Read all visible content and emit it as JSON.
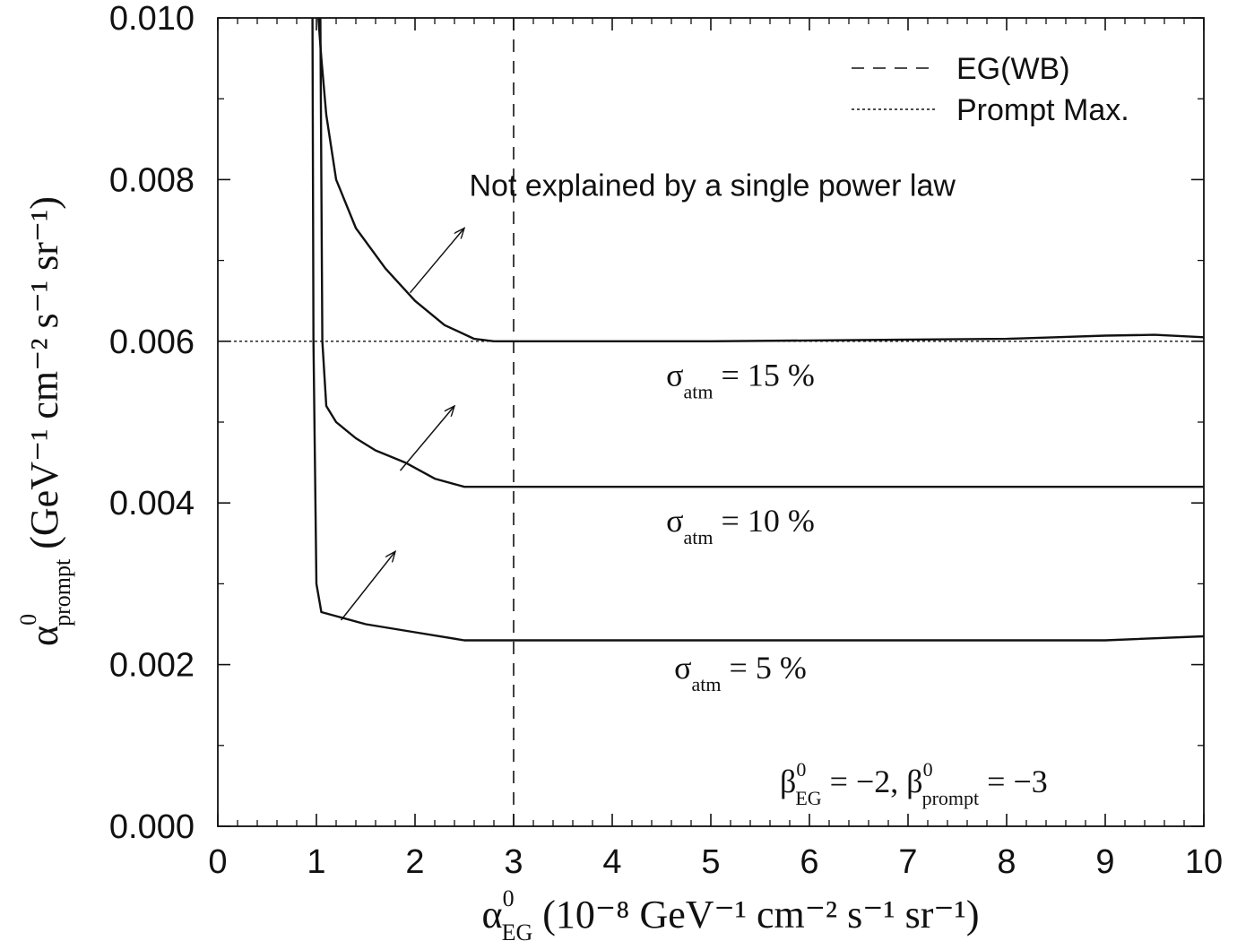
{
  "chart_data": {
    "type": "line",
    "xlim": [
      0,
      10
    ],
    "ylim": [
      0,
      0.01
    ],
    "x_ticks": [
      0,
      1,
      2,
      3,
      4,
      5,
      6,
      7,
      8,
      9,
      10
    ],
    "y_ticks": [
      0.0,
      0.002,
      0.004,
      0.006,
      0.008,
      0.01
    ],
    "x_tick_labels": [
      "0",
      "1",
      "2",
      "3",
      "4",
      "5",
      "6",
      "7",
      "8",
      "9",
      "10"
    ],
    "y_tick_labels": [
      "0.000",
      "0.002",
      "0.004",
      "0.006",
      "0.008",
      "0.010"
    ],
    "xlabel": {
      "symbol": "α",
      "sup": "0",
      "sub": "EG",
      "units": "(10⁻⁸ GeV⁻¹ cm⁻² s⁻¹ sr⁻¹)"
    },
    "ylabel": {
      "symbol": "α",
      "sup": "0",
      "sub": "prompt",
      "units": "(GeV⁻¹ cm⁻² s⁻¹ sr⁻¹)"
    },
    "legend": {
      "placement": "top-right",
      "entries": [
        {
          "label": "EG(WB)",
          "style": "dashed"
        },
        {
          "label": "Prompt Max.",
          "style": "dotted"
        }
      ]
    },
    "reference_lines": [
      {
        "label": "EG(WB)",
        "orientation": "vertical",
        "value": 3,
        "style": "dashed"
      },
      {
        "label": "Prompt Max.",
        "orientation": "horizontal",
        "value": 0.006,
        "style": "dotted"
      }
    ],
    "series": [
      {
        "label": {
          "symbol": "σ",
          "sub": "atm",
          "value": "= 15 %"
        },
        "label_pos": [
          5.3,
          0.00545
        ],
        "x": [
          1.02,
          1.05,
          1.1,
          1.2,
          1.4,
          1.7,
          2.0,
          2.3,
          2.6,
          2.8,
          3.0,
          4.0,
          5.0,
          6.0,
          7.0,
          8.0,
          8.5,
          9.0,
          9.5,
          10.0
        ],
        "y": [
          0.01,
          0.0095,
          0.0088,
          0.008,
          0.0074,
          0.0069,
          0.0065,
          0.0062,
          0.00603,
          0.006,
          0.006,
          0.006,
          0.006,
          0.00601,
          0.00602,
          0.00603,
          0.00605,
          0.00607,
          0.00608,
          0.00605
        ]
      },
      {
        "label": {
          "symbol": "σ",
          "sub": "atm",
          "value": "= 10 %"
        },
        "label_pos": [
          5.3,
          0.00365
        ],
        "x": [
          1.04,
          1.06,
          1.1,
          1.2,
          1.4,
          1.6,
          1.9,
          2.2,
          2.5,
          3.0,
          4.0,
          5.0,
          6.0,
          7.0,
          8.0,
          9.0,
          10.0
        ],
        "y": [
          0.01,
          0.006,
          0.0052,
          0.005,
          0.0048,
          0.00465,
          0.0045,
          0.0043,
          0.0042,
          0.0042,
          0.0042,
          0.0042,
          0.0042,
          0.0042,
          0.0042,
          0.0042,
          0.0042
        ]
      },
      {
        "label": {
          "symbol": "σ",
          "sub": "atm",
          "value": "= 5 %"
        },
        "label_pos": [
          5.3,
          0.00183
        ],
        "x": [
          0.96,
          0.97,
          1.0,
          1.05,
          1.2,
          1.5,
          2.0,
          2.5,
          3.0,
          4.0,
          5.0,
          6.0,
          7.0,
          8.0,
          9.0,
          10.0
        ],
        "y": [
          0.01,
          0.006,
          0.003,
          0.00265,
          0.0026,
          0.0025,
          0.0024,
          0.0023,
          0.0023,
          0.0023,
          0.0023,
          0.0023,
          0.0023,
          0.0023,
          0.0023,
          0.00235
        ]
      }
    ],
    "annotations": [
      {
        "text": "Not explained by a single power law",
        "pos": [
          2.55,
          0.0078
        ]
      },
      {
        "text_parts": {
          "b1": "β",
          "b1_sup": "0",
          "b1_sub": "EG",
          "v1": "= −2,",
          "b2": "β",
          "b2_sup": "0",
          "b2_sub": "prompt",
          "v2": "= −3"
        },
        "pos": [
          5.7,
          0.00042
        ]
      }
    ],
    "arrows": [
      {
        "from": [
          1.95,
          0.0066
        ],
        "to": [
          2.5,
          0.0074
        ]
      },
      {
        "from": [
          1.85,
          0.0044
        ],
        "to": [
          2.4,
          0.0052
        ]
      },
      {
        "from": [
          1.25,
          0.00255
        ],
        "to": [
          1.8,
          0.0034
        ]
      }
    ]
  }
}
